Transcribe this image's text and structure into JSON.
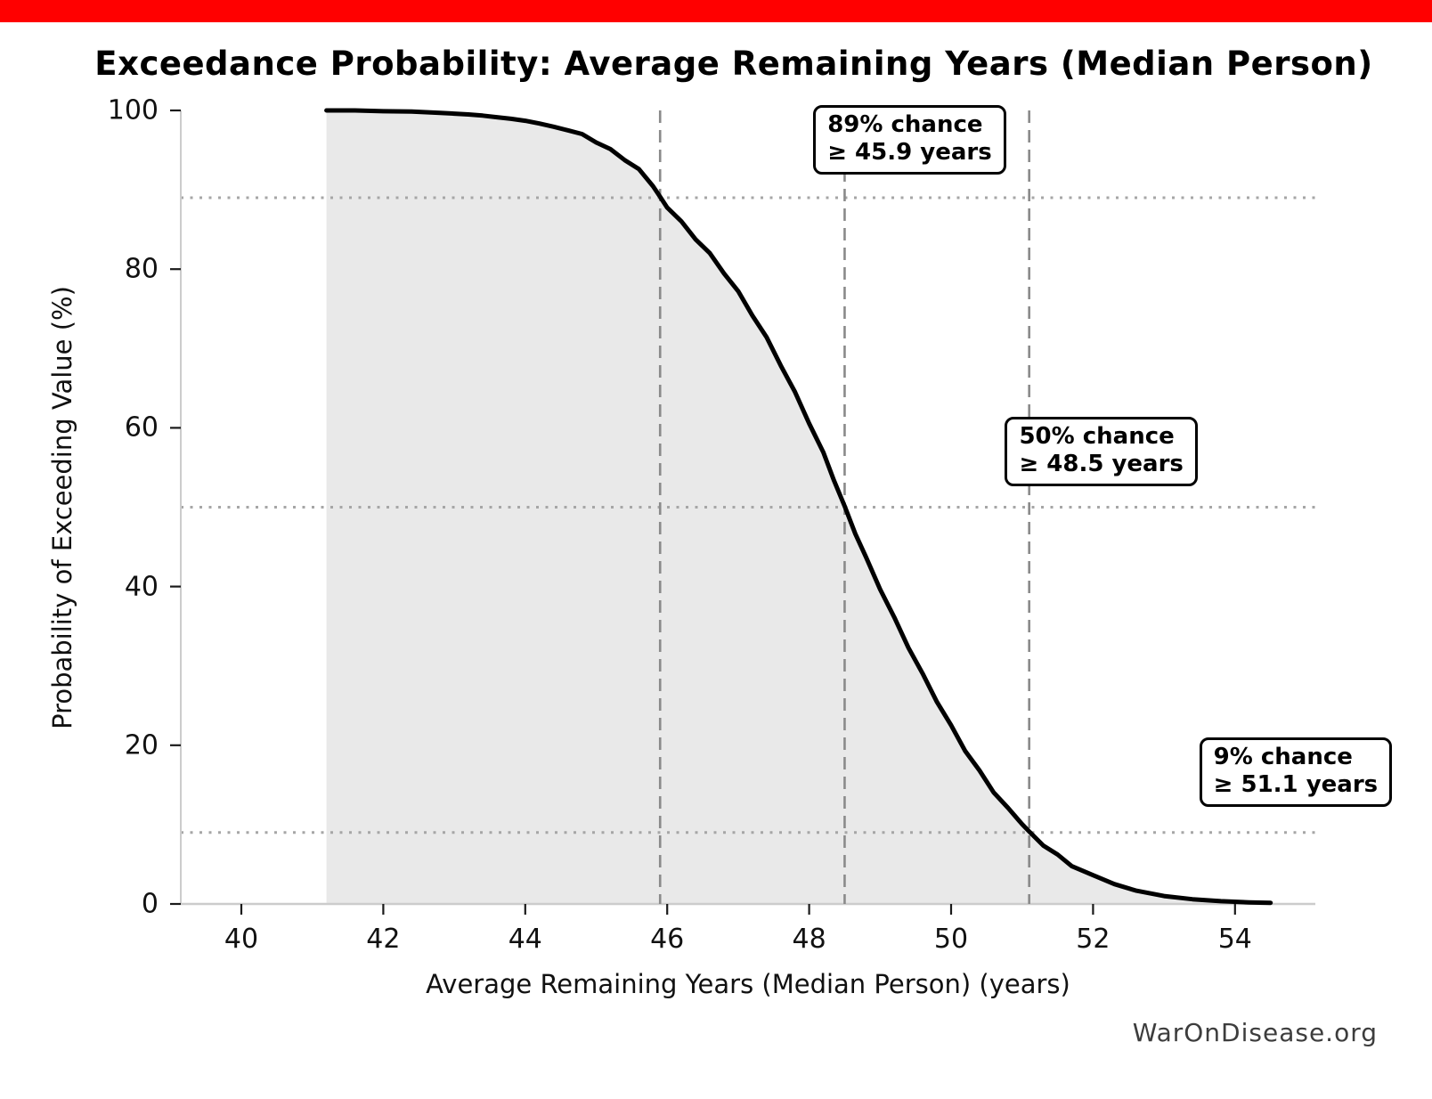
{
  "banner": {
    "color": "#ff0000"
  },
  "watermark": "WarOnDisease.org",
  "chart_data": {
    "type": "line",
    "title": "Exceedance Probability: Average Remaining Years (Median Person)",
    "xlabel": "Average Remaining Years (Median Person) (years)",
    "ylabel": "Probability of Exceeding Value (%)",
    "x_ticks": [
      40,
      42,
      44,
      46,
      48,
      50,
      52,
      54
    ],
    "y_ticks": [
      0,
      20,
      40,
      60,
      80,
      100
    ],
    "xlim": [
      39.15,
      55.1
    ],
    "ylim": [
      0,
      100
    ],
    "legend_position": "none",
    "grid": "dotted horizontal lines at annotated probabilities; dashed vertical lines at annotated values",
    "line_color": "#000000",
    "fill_color": "#e9e9e9",
    "dashed_line_color": "#8a8a8a",
    "dotted_line_color": "#a6a6a6",
    "spine_color": "#cccccc",
    "series": [
      {
        "name": "exceedance_probability",
        "points": [
          [
            41.2,
            100
          ],
          [
            41.6,
            100
          ],
          [
            42.0,
            99.9
          ],
          [
            42.4,
            99.85
          ],
          [
            42.8,
            99.7
          ],
          [
            43.0,
            99.6
          ],
          [
            43.2,
            99.5
          ],
          [
            43.4,
            99.35
          ],
          [
            43.6,
            99.15
          ],
          [
            43.8,
            98.95
          ],
          [
            44.0,
            98.7
          ],
          [
            44.2,
            98.35
          ],
          [
            44.4,
            97.95
          ],
          [
            44.6,
            97.5
          ],
          [
            44.8,
            96.9
          ],
          [
            45.0,
            96.1
          ],
          [
            45.2,
            95.0
          ],
          [
            45.4,
            93.9
          ],
          [
            45.6,
            92.5
          ],
          [
            45.8,
            90.6
          ],
          [
            45.9,
            89.0
          ],
          [
            46.0,
            87.9
          ],
          [
            46.2,
            85.9
          ],
          [
            46.4,
            83.9
          ],
          [
            46.6,
            81.9
          ],
          [
            46.8,
            79.6
          ],
          [
            47.0,
            77.1
          ],
          [
            47.2,
            74.3
          ],
          [
            47.4,
            71.3
          ],
          [
            47.6,
            68.0
          ],
          [
            47.8,
            64.4
          ],
          [
            48.0,
            60.7
          ],
          [
            48.2,
            56.8
          ],
          [
            48.35,
            53.5
          ],
          [
            48.5,
            50.0
          ],
          [
            48.65,
            46.8
          ],
          [
            48.8,
            43.6
          ],
          [
            49.0,
            39.8
          ],
          [
            49.2,
            36.0
          ],
          [
            49.4,
            32.4
          ],
          [
            49.6,
            28.9
          ],
          [
            49.8,
            25.6
          ],
          [
            50.0,
            22.4
          ],
          [
            50.2,
            19.4
          ],
          [
            50.4,
            16.7
          ],
          [
            50.6,
            14.2
          ],
          [
            50.8,
            12.0
          ],
          [
            51.0,
            10.2
          ],
          [
            51.1,
            9.0
          ],
          [
            51.3,
            7.5
          ],
          [
            51.5,
            6.1
          ],
          [
            51.7,
            4.9
          ],
          [
            52.0,
            3.5
          ],
          [
            52.3,
            2.5
          ],
          [
            52.6,
            1.7
          ],
          [
            53.0,
            1.0
          ],
          [
            53.4,
            0.6
          ],
          [
            53.8,
            0.35
          ],
          [
            54.2,
            0.2
          ],
          [
            54.5,
            0.15
          ]
        ]
      }
    ],
    "annotations": [
      {
        "line1": "89% chance",
        "line2": "≥ 45.9 years",
        "x": 45.9,
        "probability": 89
      },
      {
        "line1": "50% chance",
        "line2": "≥ 48.5 years",
        "x": 48.5,
        "probability": 50
      },
      {
        "line1": "9% chance",
        "line2": "≥ 51.1 years",
        "x": 51.1,
        "probability": 9
      }
    ]
  }
}
